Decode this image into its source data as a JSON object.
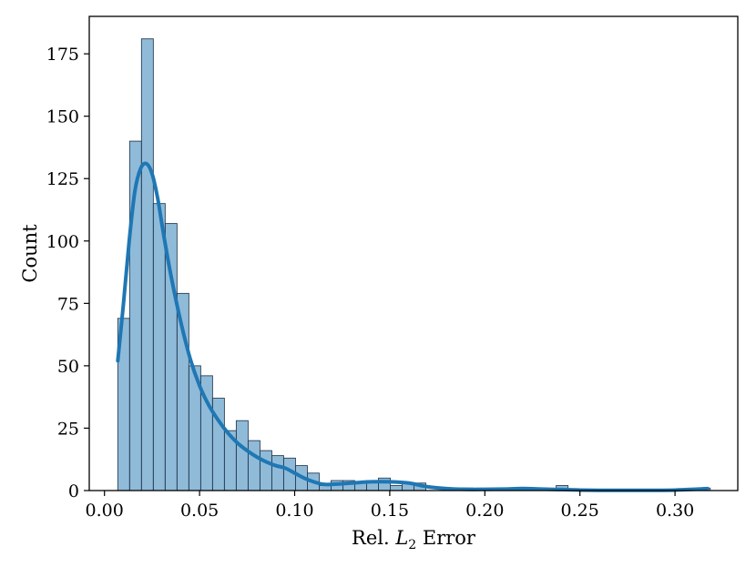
{
  "chart_data": {
    "type": "bar",
    "title": "",
    "xlabel": "Rel. L2 Error",
    "xlabel_parts": {
      "before": "Rel. ",
      "var": "L",
      "sub": "2",
      "after": " Error"
    },
    "ylabel": "Count",
    "xlim": [
      -0.008,
      0.333
    ],
    "ylim": [
      0,
      190
    ],
    "xticks": [
      0.0,
      0.05,
      0.1,
      0.15,
      0.2,
      0.25,
      0.3
    ],
    "xtick_labels": [
      "0.00",
      "0.05",
      "0.10",
      "0.15",
      "0.20",
      "0.25",
      "0.30"
    ],
    "yticks": [
      0,
      25,
      50,
      75,
      100,
      125,
      150,
      175
    ],
    "ytick_labels": [
      "0",
      "25",
      "50",
      "75",
      "100",
      "125",
      "150",
      "175"
    ],
    "bins": {
      "start": 0.007,
      "width": 0.00623,
      "counts": [
        69,
        140,
        181,
        115,
        107,
        79,
        50,
        46,
        37,
        24,
        28,
        20,
        16,
        14,
        13,
        10,
        7,
        2,
        4,
        4,
        3,
        4,
        5,
        2,
        3,
        3,
        0,
        0,
        0,
        1,
        0,
        0,
        0,
        0,
        0,
        0,
        0,
        2,
        0,
        0,
        0,
        0,
        0,
        0,
        0,
        0,
        0,
        0,
        0,
        1
      ]
    },
    "kde": {
      "name": "",
      "x": [
        0.007,
        0.01,
        0.013,
        0.016,
        0.019,
        0.022,
        0.025,
        0.028,
        0.031,
        0.035,
        0.04,
        0.045,
        0.05,
        0.055,
        0.06,
        0.065,
        0.07,
        0.075,
        0.08,
        0.085,
        0.09,
        0.095,
        0.1,
        0.105,
        0.11,
        0.115,
        0.12,
        0.13,
        0.14,
        0.15,
        0.16,
        0.17,
        0.18,
        0.19,
        0.2,
        0.21,
        0.22,
        0.23,
        0.24,
        0.25,
        0.26,
        0.27,
        0.28,
        0.29,
        0.3,
        0.31,
        0.317
      ],
      "y": [
        52,
        75,
        100,
        120,
        129,
        131,
        127,
        117,
        103,
        86,
        68,
        53,
        42,
        34,
        28,
        23,
        19,
        16,
        13.5,
        11.5,
        10,
        9,
        7,
        5,
        3.5,
        2.5,
        2.5,
        3,
        3.5,
        3.5,
        3,
        1.5,
        0.8,
        0.5,
        0.5,
        0.6,
        0.8,
        0.6,
        0.4,
        0.2,
        0.1,
        0.1,
        0.1,
        0.1,
        0.2,
        0.5,
        0.8
      ]
    },
    "grid": false,
    "legend": "none"
  },
  "colors": {
    "bar_fill": "#8fb4d6",
    "bar_edge": "#2a3f55",
    "kde_line": "#1f77b4",
    "axes": "#000000"
  }
}
